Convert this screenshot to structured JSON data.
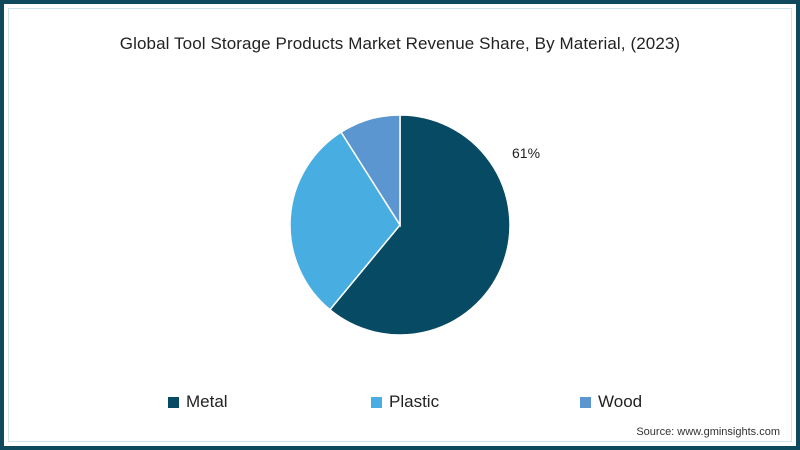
{
  "chart_data": {
    "type": "pie",
    "title": "Global Tool Storage Products Market Revenue Share, By Material, (2023)",
    "categories": [
      "Metal",
      "Plastic",
      "Wood"
    ],
    "values": [
      61,
      30,
      9
    ],
    "unit": "%",
    "colors": [
      "#064a63",
      "#48ade0",
      "#5b96d0"
    ],
    "data_labels": [
      {
        "category": "Metal",
        "text": "61%"
      }
    ],
    "start_angle": "12 o'clock",
    "direction": "clockwise",
    "legend_position": "bottom",
    "source": "Source: www.gminsights.com"
  },
  "labels": {
    "metal_pct": "61%"
  },
  "legend": [
    {
      "label": "Metal",
      "color": "#064a63"
    },
    {
      "label": "Plastic",
      "color": "#48ade0"
    },
    {
      "label": "Wood",
      "color": "#5b96d0"
    }
  ],
  "frame_color": "#0f4a5c"
}
